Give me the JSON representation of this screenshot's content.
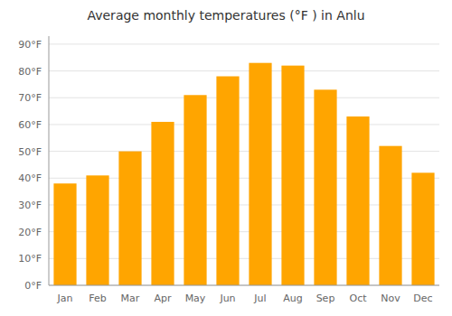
{
  "chart_data": {
    "type": "bar",
    "title": "Average monthly temperatures (°F ) in Anlu",
    "categories": [
      "Jan",
      "Feb",
      "Mar",
      "Apr",
      "May",
      "Jun",
      "Jul",
      "Aug",
      "Sep",
      "Oct",
      "Nov",
      "Dec"
    ],
    "values": [
      38,
      41,
      50,
      61,
      71,
      78,
      83,
      82,
      73,
      63,
      52,
      42
    ],
    "color": "#FFA500",
    "ylim": [
      0,
      93
    ],
    "yticks": [
      {
        "value": 0,
        "label": "0°F"
      },
      {
        "value": 10,
        "label": "10°F"
      },
      {
        "value": 20,
        "label": "20°F"
      },
      {
        "value": 30,
        "label": "30°F"
      },
      {
        "value": 40,
        "label": "40°F"
      },
      {
        "value": 50,
        "label": "50°F"
      },
      {
        "value": 60,
        "label": "60°F"
      },
      {
        "value": 70,
        "label": "70°F"
      },
      {
        "value": 80,
        "label": "80°F"
      },
      {
        "value": 90,
        "label": "90°F"
      }
    ],
    "grid": true
  }
}
